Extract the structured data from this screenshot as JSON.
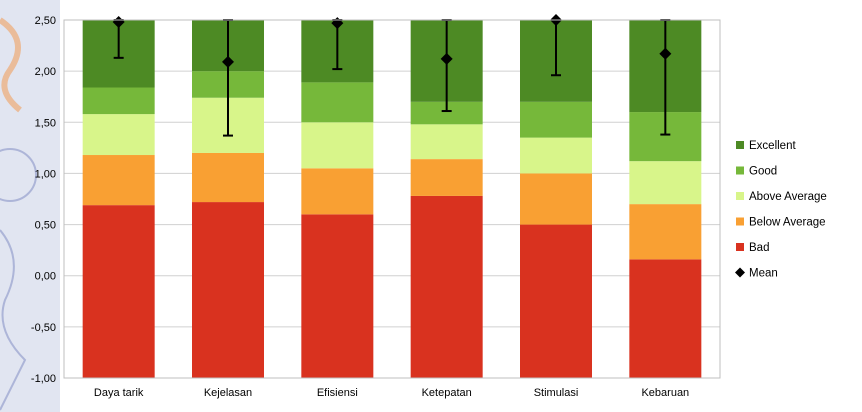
{
  "chart_data": {
    "type": "bar",
    "stacked": true,
    "categories": [
      "Daya tarik",
      "Kejelasan",
      "Efisiensi",
      "Ketepatan",
      "Stimulasi",
      "Kebaruan"
    ],
    "series": [
      {
        "name": "Bad",
        "color": "#d9321f",
        "range_bottom": -1.0,
        "range_top": [
          0.69,
          0.72,
          0.6,
          0.78,
          0.5,
          0.16
        ]
      },
      {
        "name": "Below Average",
        "color": "#f9a033",
        "range_top": [
          1.18,
          1.2,
          1.05,
          1.14,
          1.0,
          0.7
        ]
      },
      {
        "name": "Above Average",
        "color": "#d8f58a",
        "range_top": [
          1.58,
          1.74,
          1.5,
          1.48,
          1.35,
          1.12
        ]
      },
      {
        "name": "Good",
        "color": "#76b83a",
        "range_top": [
          1.84,
          2.0,
          1.89,
          1.7,
          1.7,
          1.6
        ]
      },
      {
        "name": "Excellent",
        "color": "#4d8a24",
        "range_top": [
          2.5,
          2.5,
          2.5,
          2.5,
          2.5,
          2.5
        ]
      }
    ],
    "mean": {
      "name": "Mean",
      "values": [
        2.48,
        2.09,
        2.47,
        2.12,
        2.5,
        2.17
      ],
      "err_low": [
        2.13,
        1.37,
        2.02,
        1.61,
        1.96,
        1.38
      ],
      "err_high": [
        2.5,
        2.5,
        2.5,
        2.5,
        2.5,
        2.5
      ]
    },
    "ylim": [
      -1.0,
      2.5
    ],
    "yticks": [
      "2,50",
      "2,00",
      "1,50",
      "1,00",
      "0,50",
      "0,00",
      "-0,50",
      "-1,00"
    ],
    "grid": true,
    "legend_position": "right",
    "legend_order": [
      "Excellent",
      "Good",
      "Above Average",
      "Below Average",
      "Bad",
      "Mean"
    ]
  }
}
